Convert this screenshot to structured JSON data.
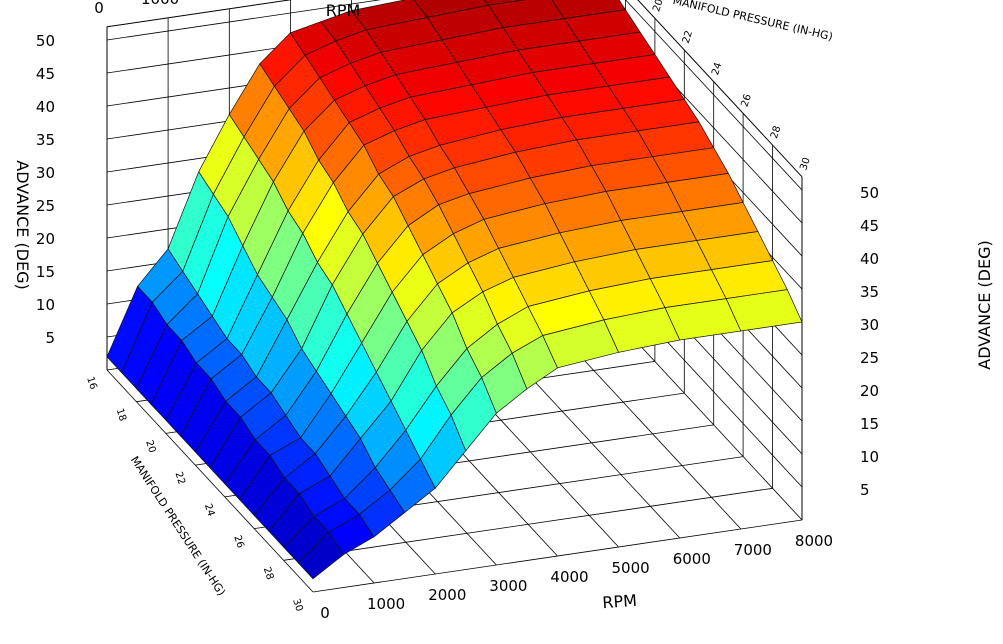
{
  "chart_data": {
    "type": "surface3d",
    "title": "",
    "x_axis": {
      "label": "RPM",
      "ticks": [
        0,
        1000,
        2000,
        3000,
        4000,
        5000,
        6000,
        7000,
        8000
      ],
      "range": [
        0,
        8000
      ]
    },
    "y_axis": {
      "label": "MANIFOLD PRESSURE (IN-HG)",
      "ticks": [
        16,
        18,
        20,
        22,
        24,
        26,
        28,
        30
      ],
      "range": [
        16,
        30
      ]
    },
    "z_axis": {
      "label": "ADVANCE (DEG)",
      "ticks": [
        5,
        10,
        15,
        20,
        25,
        30,
        35,
        40,
        45,
        50
      ],
      "range": [
        0,
        52
      ]
    },
    "grid": true,
    "colormap": "jet",
    "rpm": [
      0,
      500,
      1000,
      1500,
      2000,
      2500,
      3000,
      3500,
      4000,
      5000,
      6000,
      7000,
      8000
    ],
    "map": [
      16,
      17,
      18,
      19,
      20,
      21,
      22,
      23,
      24,
      25,
      26,
      27,
      28,
      29,
      30
    ],
    "advance": [
      [
        2,
        12,
        17,
        28,
        36,
        43,
        47,
        48,
        49,
        49.5,
        50,
        50,
        50
      ],
      [
        2,
        12,
        16,
        27,
        35,
        42,
        46,
        47.5,
        48.5,
        49,
        49.5,
        49.5,
        49.5
      ],
      [
        2,
        11,
        15,
        26,
        34,
        41,
        45,
        46.5,
        47.5,
        48,
        48.5,
        48.5,
        48.5
      ],
      [
        2,
        11,
        14,
        24,
        33,
        40,
        44,
        45.5,
        46.5,
        47,
        47.5,
        47.5,
        47.5
      ],
      [
        2,
        10,
        13,
        22,
        31,
        38,
        43,
        44.5,
        45.5,
        46,
        46.5,
        46.5,
        46.5
      ],
      [
        2,
        10,
        13,
        21,
        30,
        37,
        42,
        43.5,
        44.5,
        45,
        45.5,
        45.5,
        45.5
      ],
      [
        2,
        9,
        12,
        20,
        28,
        35,
        40,
        42,
        43,
        44,
        44.5,
        44.5,
        44.5
      ],
      [
        2,
        9,
        12,
        18,
        27,
        34,
        39,
        41,
        42,
        43,
        43.5,
        43.5,
        43.5
      ],
      [
        2,
        8,
        11,
        17,
        25,
        32,
        37,
        39.5,
        40.5,
        41.5,
        42,
        42,
        42
      ],
      [
        2,
        8,
        10,
        16,
        23,
        30,
        35,
        37.5,
        39,
        40,
        40.5,
        40.5,
        40.5
      ],
      [
        2,
        7,
        10,
        15,
        21,
        28,
        33,
        35.5,
        37,
        38,
        38.5,
        38.5,
        38.5
      ],
      [
        2,
        7,
        9,
        14,
        19,
        26,
        31,
        33.5,
        35,
        36,
        36.5,
        36.5,
        36.5
      ],
      [
        2,
        6,
        8,
        12,
        17,
        23,
        28,
        31,
        33,
        34,
        34.5,
        34.5,
        34.5
      ],
      [
        2,
        6,
        8,
        11,
        15,
        21,
        26,
        29,
        31,
        32,
        32.5,
        32.5,
        32.5
      ],
      [
        2,
        5,
        7,
        10,
        13,
        18,
        23,
        26,
        28.5,
        29.5,
        30,
        30,
        30
      ]
    ]
  }
}
